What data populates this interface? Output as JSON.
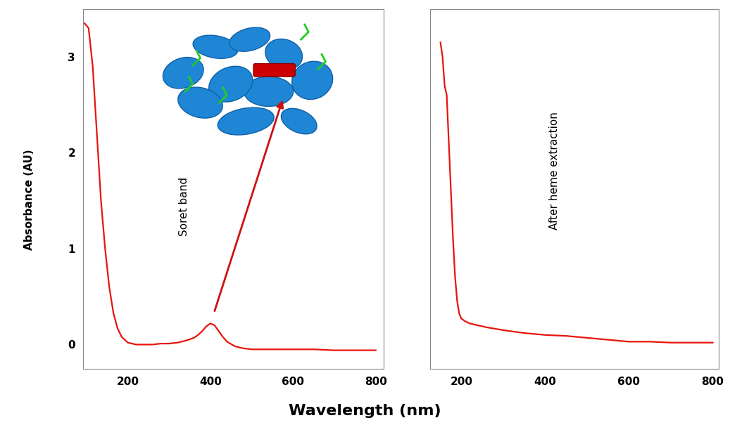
{
  "x_label": "Wavelength (nm)",
  "y_label": "Absorbance (AU)",
  "chart_data": [
    {
      "type": "line",
      "annotation": "Soret band",
      "color": "#e8140c",
      "x": [
        95,
        105,
        115,
        125,
        135,
        145,
        155,
        165,
        175,
        185,
        200,
        220,
        240,
        260,
        280,
        300,
        320,
        340,
        360,
        370,
        380,
        390,
        400,
        410,
        420,
        430,
        440,
        460,
        480,
        500,
        550,
        600,
        650,
        700,
        750,
        800
      ],
      "values": [
        3.35,
        3.3,
        2.9,
        2.2,
        1.5,
        1.0,
        0.6,
        0.33,
        0.17,
        0.08,
        0.02,
        0.0,
        0.0,
        0.0,
        0.01,
        0.01,
        0.02,
        0.04,
        0.07,
        0.1,
        0.14,
        0.19,
        0.22,
        0.2,
        0.14,
        0.08,
        0.03,
        -0.02,
        -0.04,
        -0.05,
        -0.05,
        -0.05,
        -0.05,
        -0.06,
        -0.06,
        -0.06
      ],
      "xlim": [
        92,
        820
      ],
      "xticks": [
        200,
        400,
        600,
        800
      ],
      "ylim": [
        -0.25,
        3.5
      ],
      "yticks": [
        0,
        1,
        2,
        3
      ]
    },
    {
      "type": "line",
      "annotation": "After heme extraction",
      "color": "#e8140c",
      "x": [
        150,
        155,
        160,
        165,
        170,
        175,
        180,
        185,
        190,
        195,
        200,
        210,
        220,
        240,
        260,
        300,
        350,
        400,
        450,
        500,
        550,
        600,
        650,
        700,
        750,
        800
      ],
      "values": [
        3.15,
        3.0,
        2.7,
        2.6,
        2.1,
        1.6,
        1.1,
        0.7,
        0.45,
        0.32,
        0.27,
        0.24,
        0.22,
        0.2,
        0.18,
        0.15,
        0.12,
        0.1,
        0.09,
        0.07,
        0.05,
        0.03,
        0.03,
        0.02,
        0.02,
        0.02
      ],
      "xlim": [
        125,
        815
      ],
      "xticks": [
        200,
        400,
        600,
        800
      ],
      "ylim": [
        -0.25,
        3.5
      ],
      "tick_labels": "x"
    }
  ]
}
